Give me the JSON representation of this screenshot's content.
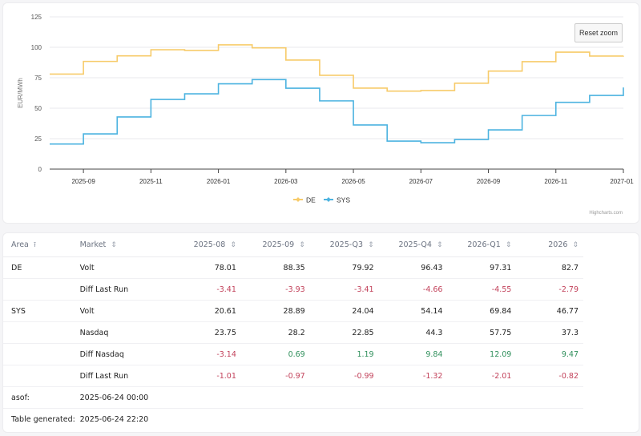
{
  "chart": {
    "reset_zoom_label": "Reset zoom",
    "credits": "Highcharts.com"
  },
  "chart_data": {
    "type": "line",
    "step": true,
    "title": "",
    "xlabel": "",
    "ylabel": "EUR/MWh",
    "ylim": [
      0,
      125
    ],
    "yticks": [
      0,
      25,
      50,
      75,
      100,
      125
    ],
    "xticks": [
      "2025-09",
      "2025-11",
      "2026-01",
      "2026-03",
      "2026-05",
      "2026-07",
      "2026-09",
      "2026-11",
      "2027-01"
    ],
    "xrange": [
      "2025-08",
      "2027-01"
    ],
    "grid": true,
    "legend": "bottom-center",
    "x": [
      "2025-08",
      "2025-09",
      "2025-10",
      "2025-11",
      "2025-12",
      "2026-01",
      "2026-02",
      "2026-03",
      "2026-04",
      "2026-05",
      "2026-06",
      "2026-07",
      "2026-08",
      "2026-09",
      "2026-10",
      "2026-11",
      "2026-12",
      "2027-01"
    ],
    "series": [
      {
        "name": "DE",
        "color": "#f7cb6a",
        "values": [
          78.0,
          88.4,
          93.0,
          98.0,
          97.4,
          102.0,
          99.5,
          89.5,
          77.0,
          66.5,
          64.0,
          64.5,
          70.5,
          80.5,
          88.2,
          96.0,
          92.8,
          93.0
        ]
      },
      {
        "name": "SYS",
        "color": "#4cb3e0",
        "values": [
          20.6,
          28.9,
          42.8,
          57.2,
          61.8,
          70.0,
          73.5,
          66.4,
          56.0,
          36.2,
          23.0,
          21.7,
          24.3,
          32.2,
          44.0,
          54.8,
          60.5,
          67.0
        ]
      }
    ]
  },
  "table": {
    "columns": [
      {
        "label": "Area",
        "sort": "sort-asc-icon"
      },
      {
        "label": "Market",
        "sort": "sort-icon"
      },
      {
        "label": "2025-08",
        "sort": "sort-icon"
      },
      {
        "label": "2025-09",
        "sort": "sort-icon"
      },
      {
        "label": "2025-Q3",
        "sort": "sort-icon"
      },
      {
        "label": "2025-Q4",
        "sort": "sort-icon"
      },
      {
        "label": "2026-Q1",
        "sort": "sort-icon"
      },
      {
        "label": "2026",
        "sort": "sort-icon"
      }
    ],
    "rows": [
      {
        "area": "DE",
        "market": "Volt",
        "values": [
          "78.01",
          "88.35",
          "79.92",
          "96.43",
          "97.31",
          "82.7"
        ]
      },
      {
        "area": "",
        "market": "Diff Last Run",
        "values": [
          "-3.41",
          "-3.93",
          "-3.41",
          "-4.66",
          "-4.55",
          "-2.79"
        ]
      },
      {
        "area": "SYS",
        "market": "Volt",
        "values": [
          "20.61",
          "28.89",
          "24.04",
          "54.14",
          "69.84",
          "46.77"
        ]
      },
      {
        "area": "",
        "market": "Nasdaq",
        "values": [
          "23.75",
          "28.2",
          "22.85",
          "44.3",
          "57.75",
          "37.3"
        ]
      },
      {
        "area": "",
        "market": "Diff Nasdaq",
        "values": [
          "-3.14",
          "0.69",
          "1.19",
          "9.84",
          "12.09",
          "9.47"
        ]
      },
      {
        "area": "",
        "market": "Diff Last Run",
        "values": [
          "-1.01",
          "-0.97",
          "-0.99",
          "-1.32",
          "-2.01",
          "-0.82"
        ]
      }
    ],
    "meta": [
      {
        "label": "asof:",
        "value": "2025-06-24 00:00"
      },
      {
        "label": "Table generated:",
        "value": "2025-06-24 22:20"
      }
    ],
    "colors": {
      "negative": "#c2415a",
      "positive": "#2f8f5b"
    }
  }
}
